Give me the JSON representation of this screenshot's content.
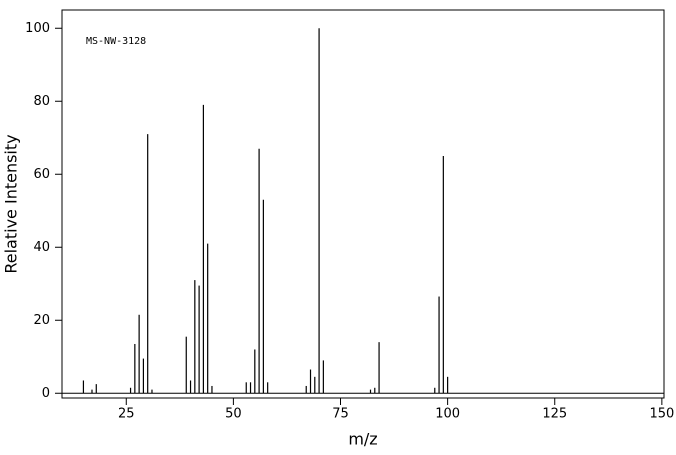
{
  "chart_data": {
    "type": "stem",
    "annotation": "MS-NW-3128",
    "x_label": "m/z",
    "y_label": "Relative Intensity",
    "x": [
      15,
      17,
      18,
      26,
      27,
      28,
      29,
      30,
      31,
      39,
      40,
      41,
      42,
      43,
      44,
      45,
      53,
      54,
      55,
      56,
      57,
      58,
      67,
      68,
      69,
      70,
      71,
      82,
      83,
      84,
      97,
      98,
      99,
      100
    ],
    "values": [
      3.5,
      1,
      2.5,
      1.5,
      13.5,
      21.5,
      9.5,
      71,
      1,
      15.5,
      3.5,
      31,
      29.5,
      79,
      41,
      2,
      3,
      3,
      12,
      67,
      53,
      3,
      2,
      6.5,
      4.5,
      100,
      9,
      1,
      1.5,
      14,
      1.5,
      26.5,
      65,
      4.5
    ],
    "color": "#000000",
    "xlim": [
      10,
      150.5
    ],
    "ylim": [
      -1.3,
      105
    ],
    "xticks": [
      25,
      50,
      75,
      100,
      125,
      150
    ],
    "yticks": [
      0,
      20,
      40,
      60,
      80,
      100
    ]
  }
}
